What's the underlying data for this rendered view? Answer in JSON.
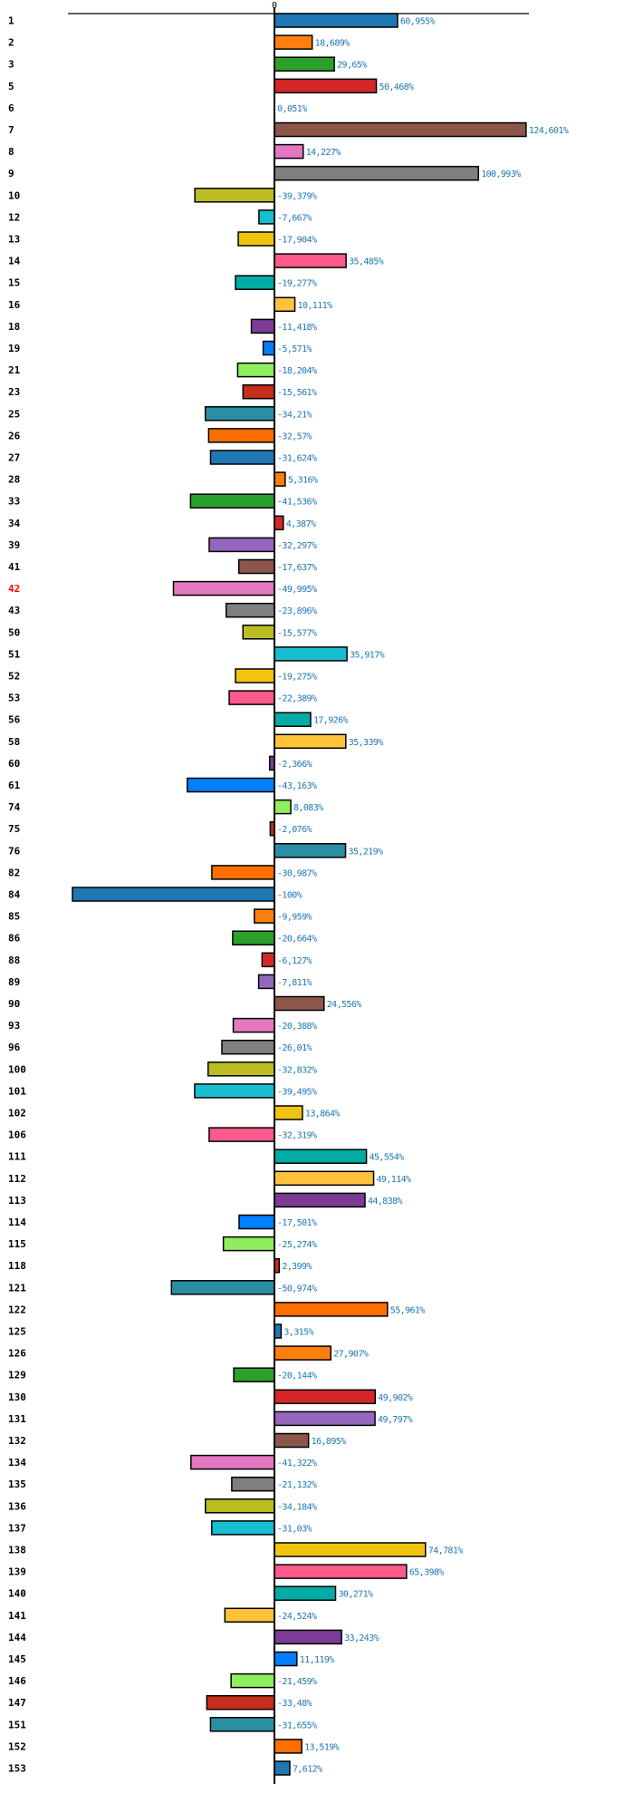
{
  "chart_data": {
    "type": "bar",
    "orientation": "horizontal",
    "title": "",
    "xlabel": "",
    "ylabel": "",
    "xlim": [
      -100,
      124.601
    ],
    "x_ticks": [
      "0"
    ],
    "grid": false,
    "legend": "none",
    "value_suffix": "%",
    "decimal_separator": ",",
    "highlight_category": "42",
    "highlight_color": "#ff0000",
    "value_label_color": "#1f77b4",
    "categories": [
      "1",
      "2",
      "3",
      "5",
      "6",
      "7",
      "8",
      "9",
      "10",
      "12",
      "13",
      "14",
      "15",
      "16",
      "18",
      "19",
      "21",
      "23",
      "25",
      "26",
      "27",
      "28",
      "33",
      "34",
      "39",
      "41",
      "42",
      "43",
      "50",
      "51",
      "52",
      "53",
      "56",
      "58",
      "60",
      "61",
      "74",
      "75",
      "76",
      "82",
      "84",
      "85",
      "86",
      "88",
      "89",
      "90",
      "93",
      "96",
      "100",
      "101",
      "102",
      "106",
      "111",
      "112",
      "113",
      "114",
      "115",
      "118",
      "121",
      "122",
      "125",
      "126",
      "129",
      "130",
      "131",
      "132",
      "134",
      "135",
      "136",
      "137",
      "138",
      "139",
      "140",
      "141",
      "144",
      "145",
      "146",
      "147",
      "151",
      "152",
      "153"
    ],
    "values": [
      60.955,
      18.689,
      29.65,
      50.468,
      0.051,
      124.601,
      14.227,
      100.993,
      -39.379,
      -7.667,
      -17.904,
      35.485,
      -19.277,
      10.111,
      -11.418,
      -5.571,
      -18.204,
      -15.561,
      -34.21,
      -32.57,
      -31.624,
      5.316,
      -41.536,
      4.387,
      -32.297,
      -17.637,
      -49.995,
      -23.896,
      -15.577,
      35.917,
      -19.275,
      -22.389,
      17.926,
      35.339,
      -2.366,
      -43.163,
      8.083,
      -2.076,
      35.219,
      -30.987,
      -100,
      -9.959,
      -20.664,
      -6.127,
      -7.811,
      24.556,
      -20.388,
      -26.01,
      -32.832,
      -39.495,
      13.864,
      -32.319,
      45.554,
      49.114,
      44.838,
      -17.501,
      -25.274,
      2.399,
      -50.974,
      55.961,
      3.315,
      27.907,
      -20.144,
      49.902,
      49.797,
      16.895,
      -41.322,
      -21.132,
      -34.184,
      -31.03,
      74.781,
      65.398,
      30.271,
      -24.524,
      33.243,
      11.119,
      -21.459,
      -33.48,
      -31.655,
      13.519,
      7.612
    ],
    "value_labels": [
      "60,955%",
      "18,689%",
      "29,65%",
      "50,468%",
      "0,051%",
      "124,601%",
      "14,227%",
      "100,993%",
      "-39,379%",
      "-7,667%",
      "-17,904%",
      "35,485%",
      "-19,277%",
      "10,111%",
      "-11,418%",
      "-5,571%",
      "-18,204%",
      "-15,561%",
      "-34,21%",
      "-32,57%",
      "-31,624%",
      "5,316%",
      "-41,536%",
      "4,387%",
      "-32,297%",
      "-17,637%",
      "-49,995%",
      "-23,896%",
      "-15,577%",
      "35,917%",
      "-19,275%",
      "-22,389%",
      "17,926%",
      "35,339%",
      "-2,366%",
      "-43,163%",
      "8,083%",
      "-2,076%",
      "35,219%",
      "-30,987%",
      "-100%",
      "-9,959%",
      "-20,664%",
      "-6,127%",
      "-7,811%",
      "24,556%",
      "-20,388%",
      "-26,01%",
      "-32,832%",
      "-39,495%",
      "13,864%",
      "-32,319%",
      "45,554%",
      "49,114%",
      "44,838%",
      "-17,501%",
      "-25,274%",
      "2,399%",
      "-50,974%",
      "55,961%",
      "3,315%",
      "27,907%",
      "-20,144%",
      "49,902%",
      "49,797%",
      "16,895%",
      "-41,322%",
      "-21,132%",
      "-34,184%",
      "-31,03%",
      "74,781%",
      "65,398%",
      "30,271%",
      "-24,524%",
      "33,243%",
      "11,119%",
      "-21,459%",
      "-33,48%",
      "-31,655%",
      "13,519%",
      "7,612%"
    ],
    "palette": [
      "#1f77b4",
      "#ff7f0e",
      "#2ca02c",
      "#d62728",
      "#9467bd",
      "#8c564b",
      "#e377c2",
      "#7f7f7f",
      "#bcbd22",
      "#17becf",
      "#f1c40f",
      "#ff5a8c",
      "#00aca4",
      "#ffc33a",
      "#7b3b96",
      "#0080ff",
      "#90ee5e",
      "#c62d1a",
      "#2b8fa3",
      "#ff6f00"
    ]
  }
}
